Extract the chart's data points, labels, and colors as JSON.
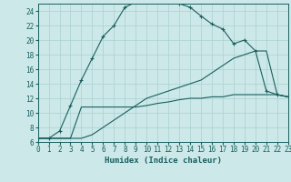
{
  "xlabel": "Humidex (Indice chaleur)",
  "xlim": [
    0,
    23
  ],
  "ylim": [
    6,
    25
  ],
  "xticks": [
    0,
    1,
    2,
    3,
    4,
    5,
    6,
    7,
    8,
    9,
    10,
    11,
    12,
    13,
    14,
    15,
    16,
    17,
    18,
    19,
    20,
    21,
    22,
    23
  ],
  "yticks": [
    6,
    8,
    10,
    12,
    14,
    16,
    18,
    20,
    22,
    24
  ],
  "bg_color": "#cce8e8",
  "grid_color": "#aad0d0",
  "line_color": "#1a5f5f",
  "line1_x": [
    0,
    1,
    2,
    3,
    4,
    5,
    6,
    7,
    8,
    9,
    10,
    11,
    12,
    13,
    14,
    15,
    16,
    17,
    18,
    19,
    20,
    21,
    22,
    23
  ],
  "line1_y": [
    6.5,
    6.5,
    7.5,
    11.0,
    14.5,
    17.5,
    20.5,
    22.0,
    24.5,
    25.2,
    25.5,
    25.4,
    25.3,
    25.0,
    24.5,
    23.3,
    22.2,
    21.5,
    19.5,
    20.0,
    18.5,
    13.0,
    12.5,
    12.2
  ],
  "line2_x": [
    0,
    1,
    2,
    3,
    4,
    5,
    6,
    7,
    8,
    9,
    10,
    11,
    12,
    13,
    14,
    15,
    16,
    17,
    18,
    19,
    20,
    21,
    22,
    23
  ],
  "line2_y": [
    6.5,
    6.5,
    6.5,
    6.5,
    6.5,
    7.0,
    8.0,
    9.0,
    10.0,
    11.0,
    12.0,
    12.5,
    13.0,
    13.5,
    14.0,
    14.5,
    15.5,
    16.5,
    17.5,
    18.0,
    18.5,
    18.5,
    12.5,
    12.2
  ],
  "line3_x": [
    0,
    1,
    2,
    3,
    4,
    5,
    6,
    7,
    8,
    9,
    10,
    11,
    12,
    13,
    14,
    15,
    16,
    17,
    18,
    19,
    20,
    21,
    22,
    23
  ],
  "line3_y": [
    6.5,
    6.5,
    6.5,
    6.5,
    10.8,
    10.8,
    10.8,
    10.8,
    10.8,
    10.8,
    11.0,
    11.3,
    11.5,
    11.8,
    12.0,
    12.0,
    12.2,
    12.2,
    12.5,
    12.5,
    12.5,
    12.5,
    12.5,
    12.2
  ]
}
